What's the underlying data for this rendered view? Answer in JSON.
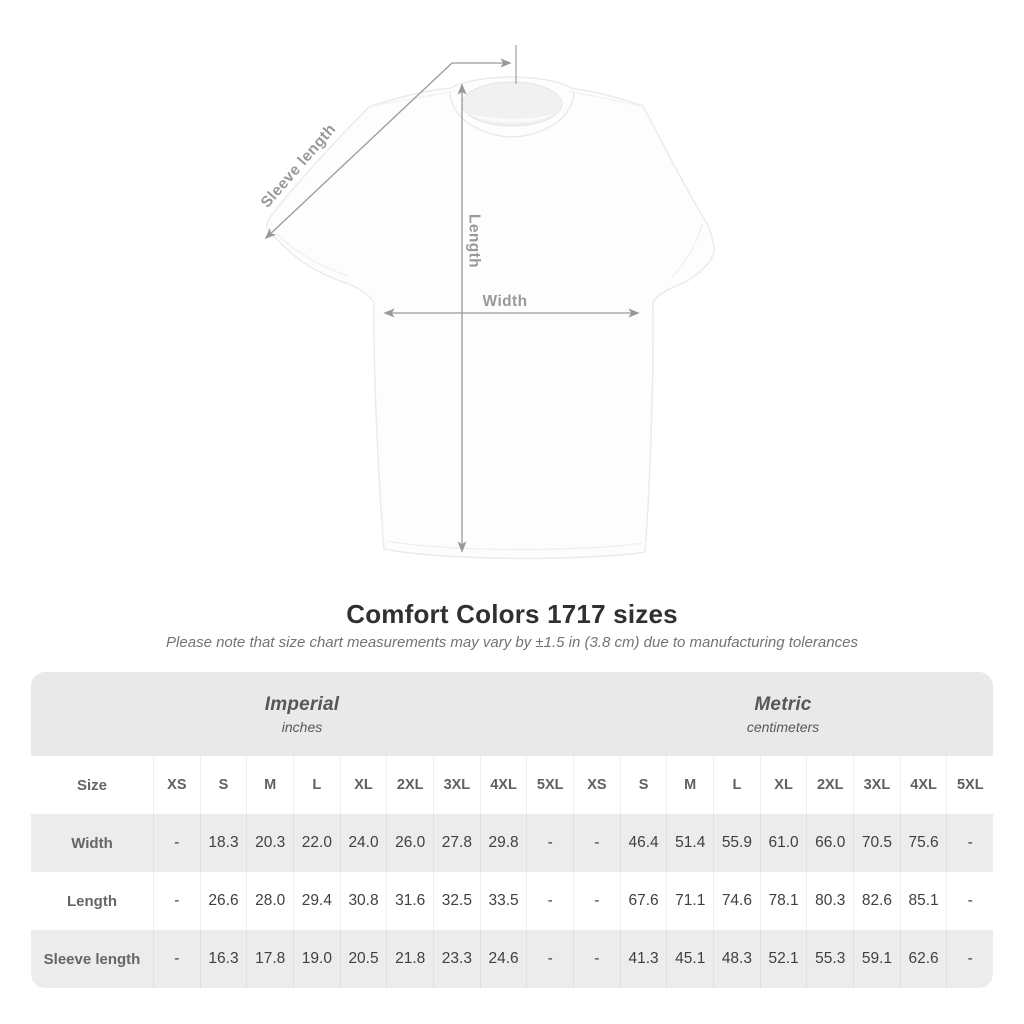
{
  "diagram": {
    "labels": {
      "sleeve": "Sleeve length",
      "length": "Length",
      "width": "Width"
    },
    "icons": [
      "dimension-arrow"
    ]
  },
  "title": "Comfort Colors 1717 sizes",
  "note": "Please note that size chart measurements may vary by ±1.5 in (3.8 cm) due to manufacturing tolerances",
  "table": {
    "size_label": "Size",
    "unit_groups": [
      {
        "name": "Imperial",
        "unit": "inches"
      },
      {
        "name": "Metric",
        "unit": "centimeters"
      }
    ],
    "sizes": [
      "XS",
      "S",
      "M",
      "L",
      "XL",
      "2XL",
      "3XL",
      "4XL",
      "5XL"
    ],
    "rows": [
      {
        "label": "Width",
        "imperial": [
          "-",
          "18.3",
          "20.3",
          "22.0",
          "24.0",
          "26.0",
          "27.8",
          "29.8",
          "-"
        ],
        "metric": [
          "-",
          "46.4",
          "51.4",
          "55.9",
          "61.0",
          "66.0",
          "70.5",
          "75.6",
          "-"
        ]
      },
      {
        "label": "Length",
        "imperial": [
          "-",
          "26.6",
          "28.0",
          "29.4",
          "30.8",
          "31.6",
          "32.5",
          "33.5",
          "-"
        ],
        "metric": [
          "-",
          "67.6",
          "71.1",
          "74.6",
          "78.1",
          "80.3",
          "82.6",
          "85.1",
          "-"
        ]
      },
      {
        "label": "Sleeve length",
        "imperial": [
          "-",
          "16.3",
          "17.8",
          "19.0",
          "20.5",
          "21.8",
          "23.3",
          "24.6",
          "-"
        ],
        "metric": [
          "-",
          "41.3",
          "45.1",
          "48.3",
          "52.1",
          "55.3",
          "59.1",
          "62.6",
          "-"
        ]
      }
    ]
  },
  "colors": {
    "band_bg": "#e9e9e9",
    "stripe_bg": "#ececec",
    "annotation_gray": "#97999c",
    "title_text": "#2e3133",
    "note_text": "#6f7478",
    "header_text": "#5d6165",
    "value_text": "#3e4043"
  }
}
